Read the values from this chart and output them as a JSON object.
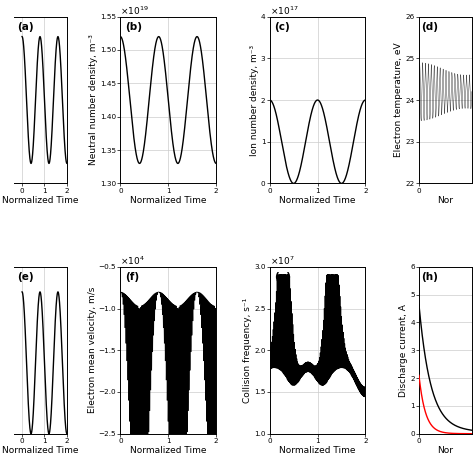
{
  "panels_top": {
    "a": {
      "label": "(a)",
      "xlabel": "Normalized Time",
      "ylabel": "",
      "xlim": [
        -0.35,
        2
      ],
      "ylim": [
        1.3,
        1.55
      ],
      "xticks": [
        0,
        1,
        2
      ]
    },
    "b": {
      "label": "(b)",
      "xlabel": "Normalized Time",
      "ylabel": "Neutral number density, m⁻³",
      "sci": "\\times 10^{19}",
      "xlim": [
        0,
        2
      ],
      "ylim": [
        1.3,
        1.55
      ],
      "xticks": [
        0,
        1,
        2
      ],
      "yticks": [
        1.3,
        1.35,
        1.4,
        1.45,
        1.5,
        1.55
      ]
    },
    "c": {
      "label": "(c)",
      "xlabel": "Normalized Time",
      "ylabel": "Ion number density, m⁻³",
      "sci": "\\times 10^{17}",
      "xlim": [
        0,
        2
      ],
      "ylim": [
        0,
        4
      ],
      "xticks": [
        0,
        1,
        2
      ],
      "yticks": [
        0,
        1,
        2,
        3,
        4
      ]
    },
    "d": {
      "label": "(d)",
      "xlabel": "Nor",
      "ylabel": "Electron temperature, eV",
      "xlim": [
        0,
        0.45
      ],
      "ylim": [
        22,
        26
      ],
      "xticks": [
        0
      ],
      "yticks": [
        22,
        23,
        24,
        25,
        26
      ]
    }
  },
  "panels_bot": {
    "e": {
      "label": "(e)",
      "xlabel": "Normalized Time",
      "ylabel": "",
      "xlim": [
        -0.35,
        2
      ],
      "ylim": [
        -2.5,
        -0.5
      ],
      "xticks": [
        0,
        1,
        2
      ]
    },
    "f": {
      "label": "(f)",
      "xlabel": "Normalized Time",
      "ylabel": "Electron mean velocity, m/s",
      "sci": "\\times 10^{4}",
      "xlim": [
        0,
        2
      ],
      "ylim": [
        -2.5,
        -0.5
      ],
      "xticks": [
        0,
        1,
        2
      ],
      "yticks": [
        -2.5,
        -2.0,
        -1.5,
        -1.0,
        -0.5
      ]
    },
    "g": {
      "label": "(g)",
      "xlabel": "Normalized Time",
      "ylabel": "Collision frequency, s⁻¹",
      "sci": "\\times 10^{7}",
      "xlim": [
        0,
        2
      ],
      "ylim": [
        1,
        3
      ],
      "xticks": [
        0,
        1,
        2
      ],
      "yticks": [
        1.0,
        1.5,
        2.0,
        2.5,
        3.0
      ]
    },
    "h": {
      "label": "(h)",
      "xlabel": "Nor",
      "ylabel": "Discharge current, A",
      "xlim": [
        0,
        0.45
      ],
      "ylim": [
        0,
        6
      ],
      "xticks": [
        0
      ],
      "yticks": [
        0,
        1,
        2,
        3,
        4,
        5,
        6
      ]
    }
  },
  "grid_color": "#cccccc",
  "lw": 1.0,
  "lw_band": 0.4,
  "fontsize": 6.5,
  "label_fontsize": 7.5
}
